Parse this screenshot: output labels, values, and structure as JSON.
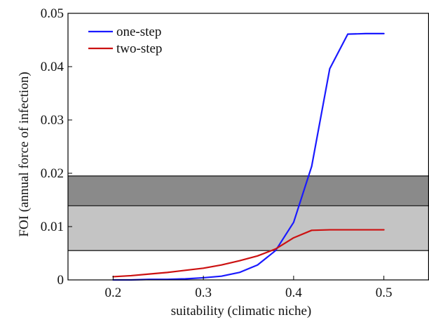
{
  "chart_data": {
    "type": "line",
    "title": "",
    "xlabel": "suitability (climatic niche)",
    "ylabel": "FOI (annual force of infection)",
    "xlim": [
      0.15,
      0.55
    ],
    "ylim": [
      0,
      0.05
    ],
    "x_ticks": [
      {
        "value": 0.2,
        "label": "0.2"
      },
      {
        "value": 0.3,
        "label": "0.3"
      },
      {
        "value": 0.4,
        "label": "0.4"
      },
      {
        "value": 0.5,
        "label": "0.5"
      }
    ],
    "y_ticks": [
      {
        "value": 0,
        "label": "0"
      },
      {
        "value": 0.01,
        "label": "0.01"
      },
      {
        "value": 0.02,
        "label": "0.02"
      },
      {
        "value": 0.03,
        "label": "0.03"
      },
      {
        "value": 0.04,
        "label": "0.04"
      },
      {
        "value": 0.05,
        "label": "0.05"
      }
    ],
    "bands": [
      {
        "y0": 0.0139,
        "y1": 0.0195,
        "color": "#8a8a8a"
      },
      {
        "y0": 0.0055,
        "y1": 0.0139,
        "color": "#c4c4c4"
      }
    ],
    "band_lines": [
      0.0055,
      0.0139,
      0.0195
    ],
    "series": [
      {
        "name": "one-step",
        "color": "#1a1aff",
        "x": [
          0.2,
          0.22,
          0.24,
          0.26,
          0.28,
          0.3,
          0.32,
          0.34,
          0.36,
          0.38,
          0.4,
          0.42,
          0.44,
          0.46,
          0.48,
          0.5
        ],
        "y": [
          0.0,
          0.0,
          0.0001,
          0.0001,
          0.0002,
          0.0004,
          0.0007,
          0.0014,
          0.0028,
          0.0055,
          0.0108,
          0.0213,
          0.0396,
          0.0461,
          0.0462,
          0.0462
        ]
      },
      {
        "name": "two-step",
        "color": "#cc1111",
        "x": [
          0.2,
          0.22,
          0.24,
          0.26,
          0.28,
          0.3,
          0.32,
          0.34,
          0.36,
          0.38,
          0.4,
          0.42,
          0.44,
          0.46,
          0.48,
          0.5
        ],
        "y": [
          0.0006,
          0.0008,
          0.0011,
          0.0014,
          0.0018,
          0.0022,
          0.0028,
          0.0036,
          0.0045,
          0.0058,
          0.0079,
          0.0093,
          0.0094,
          0.0094,
          0.0094,
          0.0094
        ]
      }
    ],
    "legend": {
      "position": "top-left"
    },
    "grid": false
  }
}
